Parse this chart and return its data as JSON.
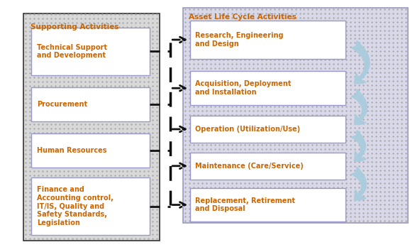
{
  "fig_width": 5.92,
  "fig_height": 3.55,
  "bg_color": "#ffffff",
  "left_panel_bg": "#d8d8d8",
  "left_panel_border": "#333333",
  "right_panel_bg": "#d8d8e8",
  "right_panel_border": "#9999bb",
  "box_bg": "#ffffff",
  "box_border": "#9999cc",
  "left_title": "Supporting Activities",
  "right_title": "Asset Life Cycle Activities",
  "title_color": "#cc6600",
  "left_boxes": [
    "Technical Support\nand Development",
    "Procurement",
    "Human Resources",
    "Finance and\nAccounting control,\nIT/IS, Quality and\nSafety Standards,\nLegislation"
  ],
  "left_box_text_color": "#cc6600",
  "right_boxes": [
    "Research, Engineering\nand Design",
    "Acquisition, Deployment\nand Installation",
    "Operation (Utilization/Use)",
    "Maintenance (Care/Service)",
    "Replacement, Retirement\nand Disposal"
  ],
  "right_box_text_color": "#cc6600",
  "arrow_color_light": "#aaccdd",
  "arrow_color_dark": "#669999",
  "dashed_color": "#111111",
  "font_size_title": 7.5,
  "font_size_box": 7.0
}
